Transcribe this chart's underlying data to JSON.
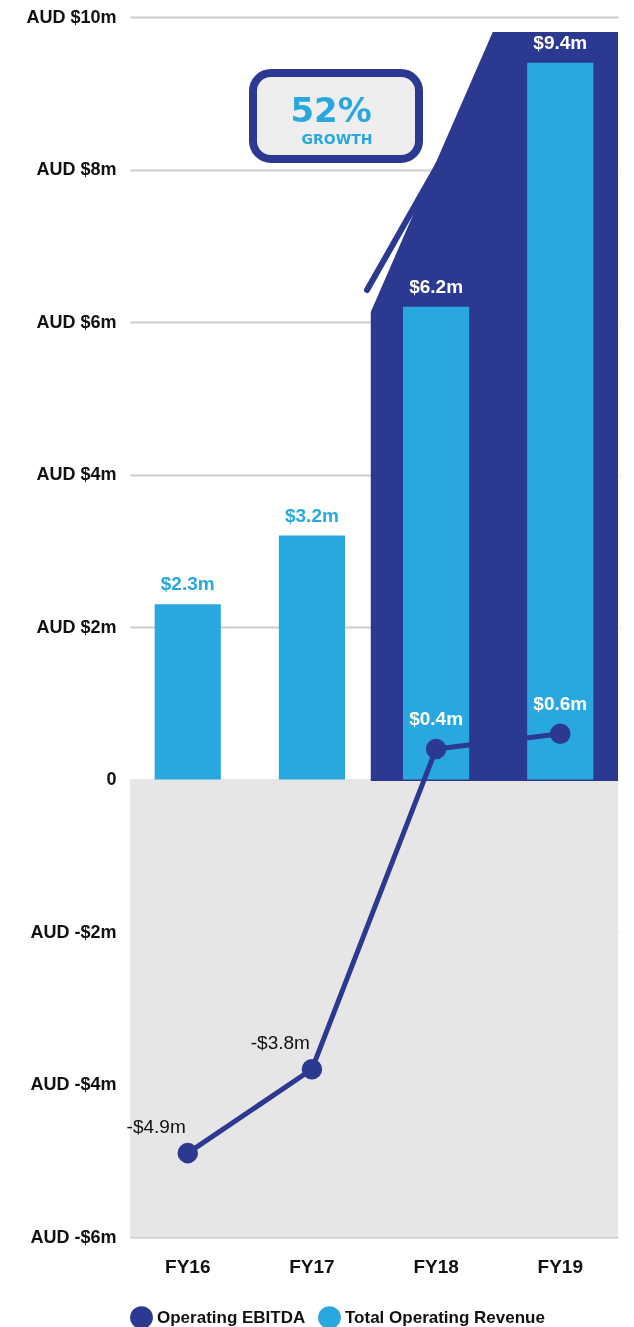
{
  "chart_data": {
    "type": "bar",
    "categories": [
      "FY16",
      "FY17",
      "FY18",
      "FY19"
    ],
    "series": [
      {
        "name": "Operating EBITDA",
        "type": "line",
        "color": "#2b3990",
        "values": [
          -4.9,
          -3.8,
          0.4,
          0.6
        ],
        "value_labels": [
          "-$4.9m",
          "-$3.8m",
          "$0.4m",
          "$0.6m"
        ]
      },
      {
        "name": "Total Operating Revenue",
        "color": "#29a8e0",
        "values": [
          2.3,
          3.2,
          6.2,
          9.4
        ],
        "value_labels": [
          "$2.3m",
          "$3.2m",
          "$6.2m",
          "$9.4m"
        ]
      }
    ],
    "ylim": [
      -6,
      10
    ],
    "yticks": [
      {
        "value": -6,
        "label": "AUD -$6m"
      },
      {
        "value": -4,
        "label": "AUD -$4m"
      },
      {
        "value": -2,
        "label": "AUD -$2m"
      },
      0,
      {
        "value": 2,
        "label": "AUD $2m"
      },
      {
        "value": 4,
        "label": "AUD $4m"
      },
      {
        "value": 6,
        "label": "AUD $6m"
      },
      {
        "value": 8,
        "label": "AUD $8m"
      },
      {
        "value": 10,
        "label": "AUD $10m"
      }
    ],
    "grid": "y",
    "legend": "bottom",
    "marker": "circle",
    "bands": [
      {
        "axis": "y",
        "from": -6,
        "to": 0,
        "color": "#e6e6e6"
      }
    ],
    "annotations": [
      "52% GROWTH"
    ]
  }
}
